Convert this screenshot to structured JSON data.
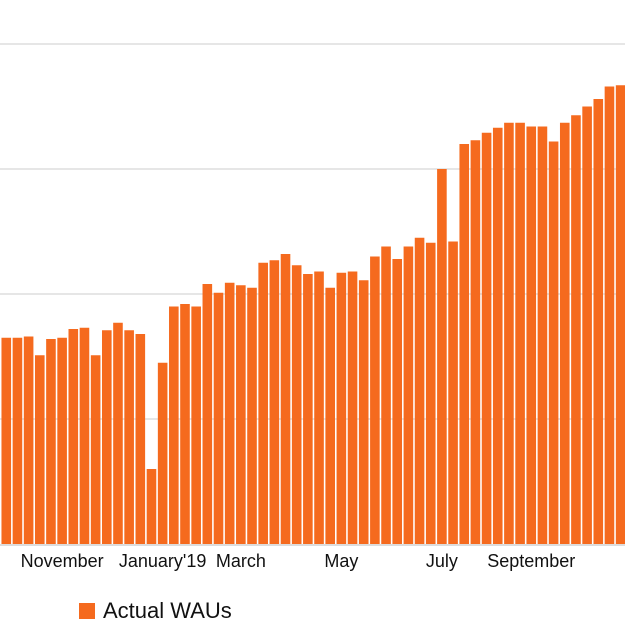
{
  "chart_data": {
    "type": "bar",
    "series": [
      {
        "name": "Actual WAUs",
        "color": "#f56a1e",
        "values": [
          145,
          165,
          165,
          166,
          151,
          164,
          165,
          172,
          173,
          151,
          171,
          177,
          171,
          168,
          60,
          145,
          190,
          192,
          190,
          208,
          201,
          209,
          207,
          205,
          225,
          227,
          232,
          223,
          216,
          218,
          205,
          217,
          218,
          211,
          230,
          238,
          228,
          238,
          245,
          241,
          300,
          242,
          320,
          323,
          329,
          333,
          337,
          337,
          334,
          334,
          322,
          337,
          343,
          350,
          356,
          366,
          367
        ]
      }
    ],
    "ylim": [
      0,
      370
    ],
    "x_tick_labels": [
      {
        "label": "November",
        "bar": 6
      },
      {
        "label": "January'19",
        "bar": 15
      },
      {
        "label": "March",
        "bar": 22
      },
      {
        "label": "May",
        "bar": 31
      },
      {
        "label": "July",
        "bar": 40
      },
      {
        "label": "September",
        "bar": 48
      }
    ],
    "gridlines": true,
    "legend": {
      "position": "bottom-left",
      "entries": [
        "Actual WAUs"
      ]
    }
  }
}
